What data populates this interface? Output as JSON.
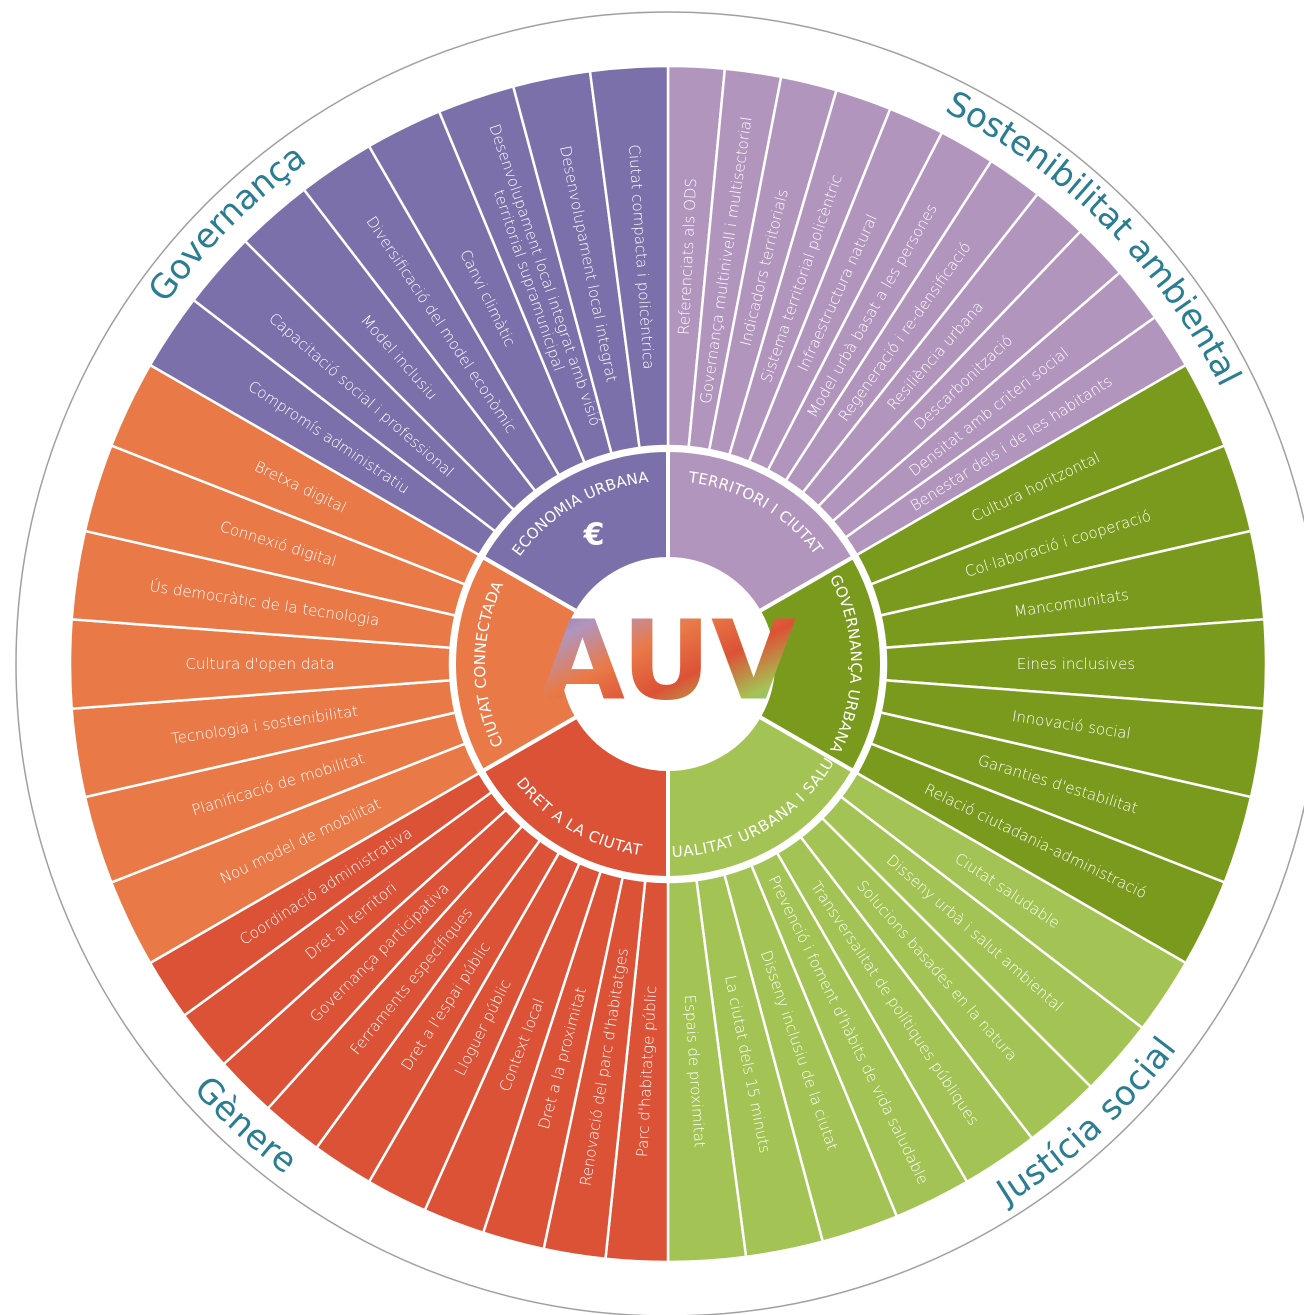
{
  "center": "AUV",
  "outer_labels": [
    "Governança",
    "Sostenibilitat ambiental",
    "Justícia social",
    "Gènere"
  ],
  "sectors": [
    {
      "name": "TERRITORI I CIUTAT",
      "items": [
        "Referenciats als ODS",
        "Governança multinivell i multisectorial",
        "Indicadors territorials",
        "Sistema territorial policèntric",
        "Infraestructura natural",
        "Model urbà basat a les persones",
        "Regeneració i re-densificació",
        "Resiliència urbana",
        "Descarbonització",
        "Densitat amb criteri social",
        "Benestar dels i de les habitants"
      ]
    },
    {
      "name": "GOVERNANÇA URBANA",
      "items": [
        "Cultura horitzontal",
        "Col·laboració i cooperació",
        "Mancomunitats",
        "Eines inclusives",
        "Innovació social",
        "Garanties d'estabilitat",
        "Relació ciutadania-administració"
      ]
    },
    {
      "name": "QUALITAT URBANA I SALUT",
      "items": [
        "Ciutat saludable",
        "Disseny urbà i salut ambiental",
        "Solucions basades en la natura",
        "Transversalitat de polítiques públiques",
        "Prevenció i foment d'hàbits de vida saludable",
        "Disseny inclusiu de la ciutat",
        "La ciutat dels 15 minuts",
        "Espais de proximitat"
      ]
    },
    {
      "name": "DRET A LA CIUTAT",
      "items": [
        "Parc d'habitatge públic",
        "Renovació del parc d'habitatges",
        "Dret a la proximitat",
        "Context local",
        "Lloguer públic",
        "Dret a l'espai públic",
        "Ferraments específiques",
        "Governança participativa",
        "Dret al territori",
        "Coordinació administrativa"
      ]
    },
    {
      "name": "CIUTAT CONNECTADA",
      "items": [
        "Nou model de mobilitat",
        "Planificació de mobilitat",
        "Tecnologia i sostenibilitat",
        "Cultura d'open data",
        "Ús democràtic de la tecnologia",
        "Connexió digital",
        "Bretxa digital"
      ]
    },
    {
      "name": "ECONOMIA URBANA",
      "icon": "€",
      "items": [
        "Compromís administratiu",
        "Capacitació social i professional",
        "Model inclusiu",
        "Diversificació del model econòmic",
        "Canvi climàtic",
        "Desenvolupament local integrat amb visió\nterritorial supramunicipal",
        "Desenvolupament local integrat",
        "Ciutat compacta i policèntrica"
      ]
    }
  ]
}
